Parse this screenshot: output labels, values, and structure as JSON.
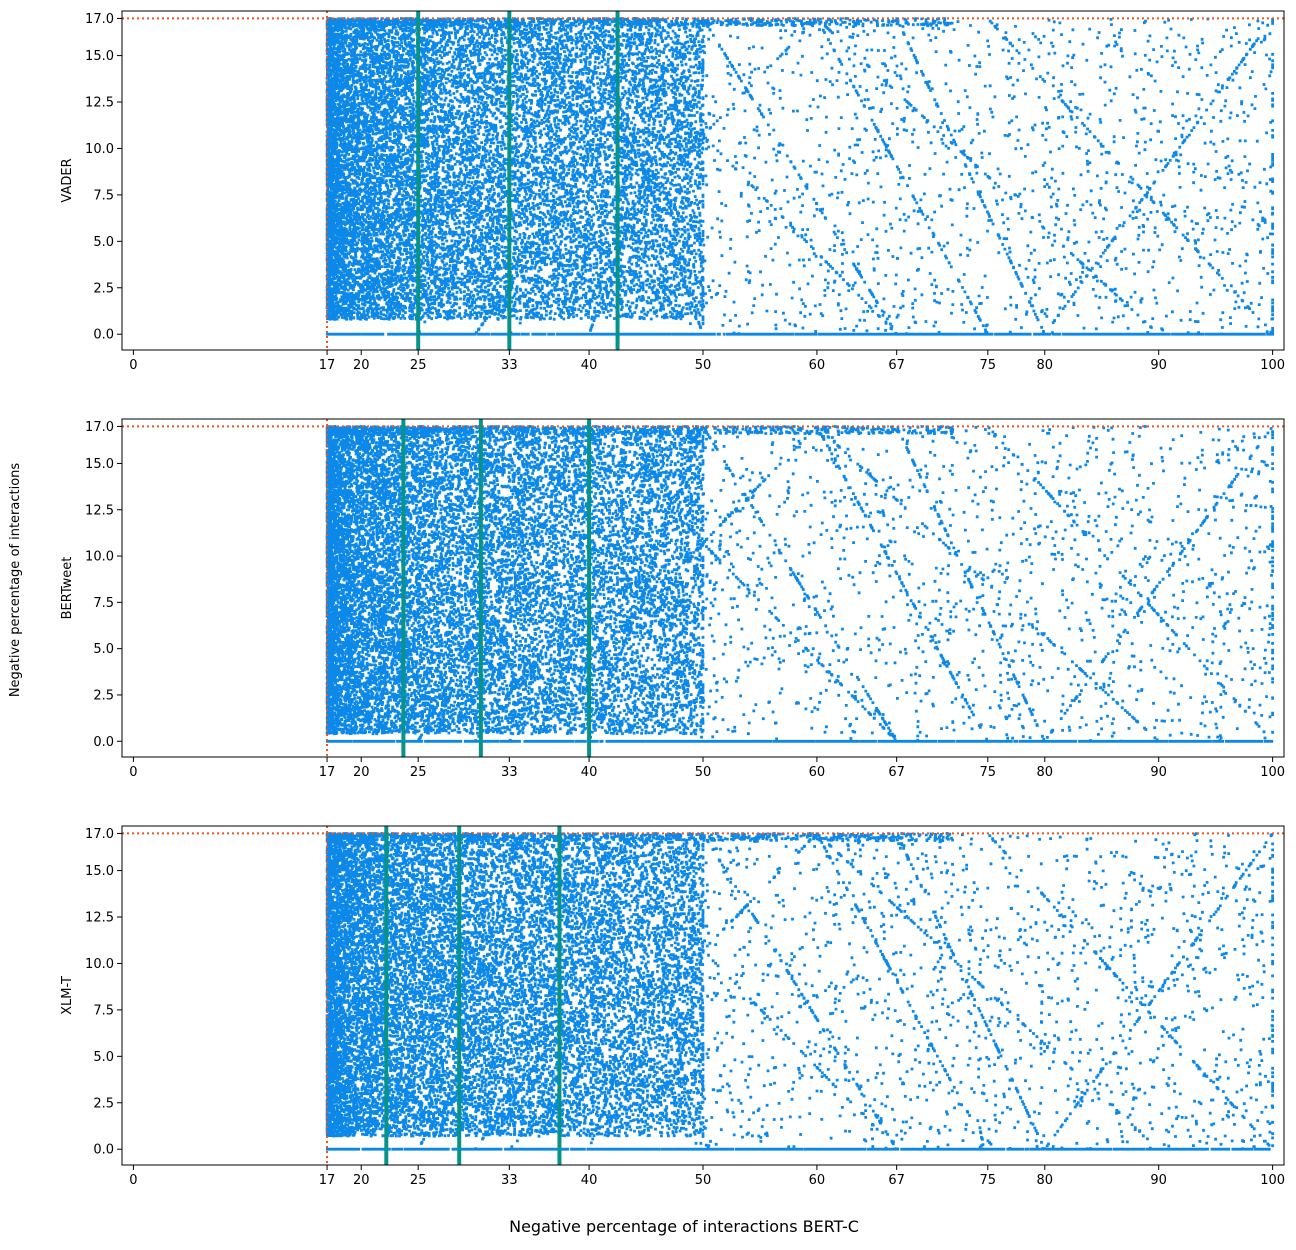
{
  "figure": {
    "supylabel": "Negative percentage of interactions",
    "supxlabel": "Negative percentage of interactions BERT-C"
  },
  "colors": {
    "points": "#0c88e8",
    "quantile_lines": "#079389",
    "threshold_lines": "#f0541c",
    "axes": "#000000"
  },
  "chart_data": [
    {
      "type": "scatter",
      "name": "panel-vader",
      "ylabel": "VADER",
      "xlim": [
        -1,
        101
      ],
      "ylim": [
        -0.85,
        17.4
      ],
      "x_ticks": [
        0,
        17,
        20,
        25,
        33,
        40,
        50,
        60,
        67,
        75,
        80,
        90,
        100
      ],
      "y_ticks": [
        0.0,
        2.5,
        5.0,
        7.5,
        10.0,
        12.5,
        15.0,
        17.0
      ],
      "y_tick_labels": [
        "0.0",
        "2.5",
        "5.0",
        "7.5",
        "10.0",
        "12.5",
        "15.0",
        "17.0"
      ],
      "threshold_x": 17,
      "threshold_y": 17,
      "quantile_lines_x": [
        25,
        33,
        42.5
      ],
      "note_points": "dense scatter of interactions, x in [17,100], y in [0,17]"
    },
    {
      "type": "scatter",
      "name": "panel-bertweet",
      "ylabel": "BERTweet",
      "xlim": [
        -1,
        101
      ],
      "ylim": [
        -0.85,
        17.4
      ],
      "x_ticks": [
        0,
        17,
        20,
        25,
        33,
        40,
        50,
        60,
        67,
        75,
        80,
        90,
        100
      ],
      "y_ticks": [
        0.0,
        2.5,
        5.0,
        7.5,
        10.0,
        12.5,
        15.0,
        17.0
      ],
      "y_tick_labels": [
        "0.0",
        "2.5",
        "5.0",
        "7.5",
        "10.0",
        "12.5",
        "15.0",
        "17.0"
      ],
      "threshold_x": 17,
      "threshold_y": 17,
      "quantile_lines_x": [
        23.7,
        30.5,
        40
      ]
    },
    {
      "type": "scatter",
      "name": "panel-xlmt",
      "ylabel": "XLM-T",
      "xlim": [
        -1,
        101
      ],
      "ylim": [
        -0.85,
        17.4
      ],
      "x_ticks": [
        0,
        17,
        20,
        25,
        33,
        40,
        50,
        60,
        67,
        75,
        80,
        90,
        100
      ],
      "y_ticks": [
        0.0,
        2.5,
        5.0,
        7.5,
        10.0,
        12.5,
        15.0,
        17.0
      ],
      "y_tick_labels": [
        "0.0",
        "2.5",
        "5.0",
        "7.5",
        "10.0",
        "12.5",
        "15.0",
        "17.0"
      ],
      "threshold_x": 17,
      "threshold_y": 17,
      "quantile_lines_x": [
        22.2,
        28.6,
        37.4
      ]
    }
  ]
}
